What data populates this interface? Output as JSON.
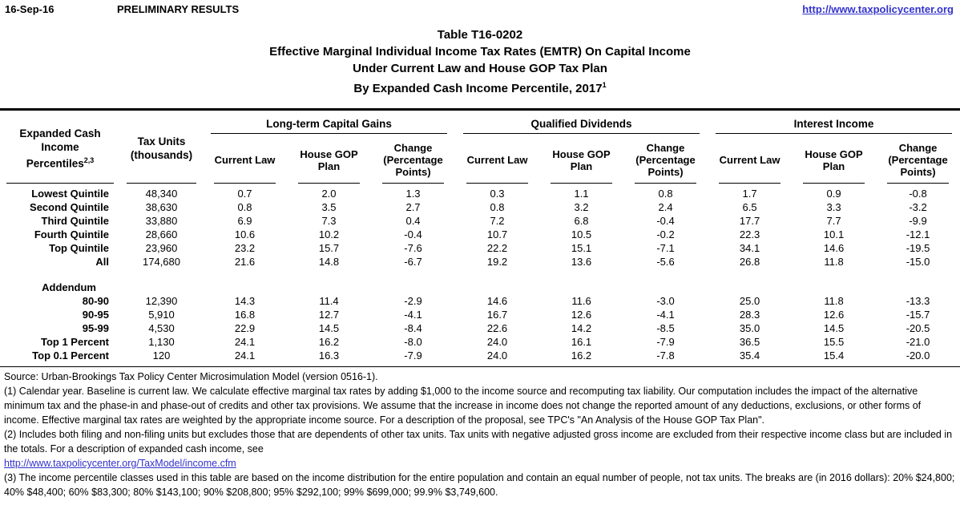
{
  "header": {
    "date": "16-Sep-16",
    "status": "PRELIMINARY RESULTS",
    "site_link": "http://www.taxpolicycenter.org"
  },
  "title": {
    "table_number": "Table T16-0202",
    "line2": "Effective Marginal Individual Income Tax Rates (EMTR) On Capital Income",
    "line3": "Under Current Law and House GOP Tax Plan",
    "line4": "By Expanded Cash Income Percentile, 2017",
    "line4_note": "1"
  },
  "table": {
    "col1_header": {
      "line1": "Expanded Cash Income",
      "line2": "Percentiles",
      "note": "2,3"
    },
    "col2_header": {
      "line1": "Tax Units",
      "line2": "(thousands)"
    },
    "groups": [
      "Long-term Capital Gains",
      "Qualified Dividends",
      "Interest Income"
    ],
    "sub_headers": [
      "Current Law",
      "House GOP Plan",
      "Change (Percentage Points)"
    ],
    "rows": [
      {
        "label": "Lowest Quintile",
        "values": [
          "48,340",
          "0.7",
          "2.0",
          "1.3",
          "0.3",
          "1.1",
          "0.8",
          "1.7",
          "0.9",
          "-0.8"
        ]
      },
      {
        "label": "Second Quintile",
        "values": [
          "38,630",
          "0.8",
          "3.5",
          "2.7",
          "0.8",
          "3.2",
          "2.4",
          "6.5",
          "3.3",
          "-3.2"
        ]
      },
      {
        "label": "Third Quintile",
        "values": [
          "33,880",
          "6.9",
          "7.3",
          "0.4",
          "7.2",
          "6.8",
          "-0.4",
          "17.7",
          "7.7",
          "-9.9"
        ]
      },
      {
        "label": "Fourth Quintile",
        "values": [
          "28,660",
          "10.6",
          "10.2",
          "-0.4",
          "10.7",
          "10.5",
          "-0.2",
          "22.3",
          "10.1",
          "-12.1"
        ]
      },
      {
        "label": "Top Quintile",
        "values": [
          "23,960",
          "23.2",
          "15.7",
          "-7.6",
          "22.2",
          "15.1",
          "-7.1",
          "34.1",
          "14.6",
          "-19.5"
        ]
      },
      {
        "label": "All",
        "values": [
          "174,680",
          "21.6",
          "14.8",
          "-6.7",
          "19.2",
          "13.6",
          "-5.6",
          "26.8",
          "11.8",
          "-15.0"
        ]
      }
    ],
    "addendum_label": "Addendum",
    "addendum_rows": [
      {
        "label": "80-90",
        "values": [
          "12,390",
          "14.3",
          "11.4",
          "-2.9",
          "14.6",
          "11.6",
          "-3.0",
          "25.0",
          "11.8",
          "-13.3"
        ]
      },
      {
        "label": "90-95",
        "values": [
          "5,910",
          "16.8",
          "12.7",
          "-4.1",
          "16.7",
          "12.6",
          "-4.1",
          "28.3",
          "12.6",
          "-15.7"
        ]
      },
      {
        "label": "95-99",
        "values": [
          "4,530",
          "22.9",
          "14.5",
          "-8.4",
          "22.6",
          "14.2",
          "-8.5",
          "35.0",
          "14.5",
          "-20.5"
        ]
      },
      {
        "label": "Top 1 Percent",
        "values": [
          "1,130",
          "24.1",
          "16.2",
          "-8.0",
          "24.0",
          "16.1",
          "-7.9",
          "36.5",
          "15.5",
          "-21.0"
        ]
      },
      {
        "label": "Top 0.1 Percent",
        "values": [
          "120",
          "24.1",
          "16.3",
          "-7.9",
          "24.0",
          "16.2",
          "-7.8",
          "35.4",
          "15.4",
          "-20.0"
        ]
      }
    ]
  },
  "footnotes": {
    "source": "Source: Urban-Brookings Tax Policy Center Microsimulation Model (version 0516-1).",
    "note1": "(1) Calendar year. Baseline is current law. We calculate effective marginal tax rates by adding $1,000 to the income source and recomputing tax liability. Our computation includes the impact of the alternative minimum tax and the phase-in and phase-out of credits and other tax provisions. We assume that the increase in income does not change the reported amount of any deductions, exclusions, or other forms of income. Effective marginal tax rates are weighted by the appropriate income source. For a description of the proposal, see TPC's \"An Analysis of the House GOP Tax Plan\".",
    "note2": "(2) Includes both filing and non-filing units but excludes those that are dependents of other tax units. Tax units with negative adjusted gross income are excluded from their respective income class but are included in the totals. For a description of expanded cash income, see",
    "note2_link": "http://www.taxpolicycenter.org/TaxModel/income.cfm",
    "note3": "(3) The income percentile classes used in this table are based on the income distribution for the entire population and contain an equal number of people, not tax units. The breaks are (in 2016 dollars): 20% $24,800; 40% $48,400; 60% $83,300; 80% $143,100; 90% $208,800; 95% $292,100; 99% $699,000; 99.9% $3,749,600."
  }
}
